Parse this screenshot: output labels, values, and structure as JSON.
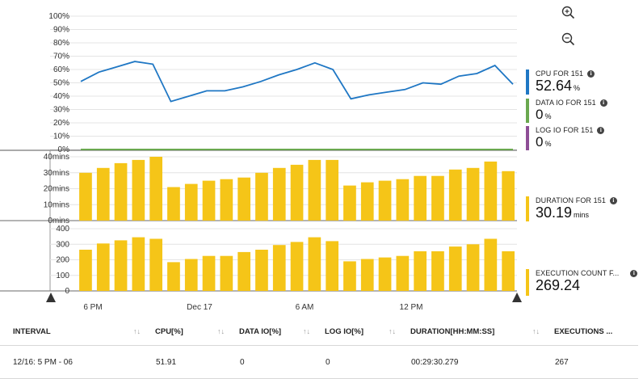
{
  "colors": {
    "cpu": "#1f77c4",
    "data_io": "#6aa84f",
    "log_io": "#8e4e96",
    "duration": "#f5c518",
    "executions": "#f5c518",
    "gridline": "#e4e4e4",
    "axis": "#666666"
  },
  "toolbar": {
    "zoom_in_icon": "zoom-in-icon",
    "zoom_out_icon": "zoom-out-icon"
  },
  "legend": {
    "cpu": {
      "label": "CPU FOR 151",
      "value": "52.64",
      "unit": "%"
    },
    "data_io": {
      "label": "DATA IO FOR 151",
      "value": "0",
      "unit": "%"
    },
    "log_io": {
      "label": "LOG IO FOR 151",
      "value": "0",
      "unit": "%"
    },
    "duration": {
      "label": "DURATION FOR 151",
      "value": "30.19",
      "unit": "mins"
    },
    "executions": {
      "label": "EXECUTION COUNT F...",
      "value": "269.24"
    }
  },
  "chart_data": [
    {
      "type": "line",
      "name": "cpu",
      "yticks": [
        "100%",
        "90%",
        "80%",
        "70%",
        "60%",
        "50%",
        "40%",
        "30%",
        "20%",
        "10%",
        "0%"
      ],
      "ylim": [
        0,
        100
      ],
      "series": [
        {
          "name": "CPU FOR 151",
          "values": [
            51,
            58,
            62,
            66,
            64,
            36,
            40,
            44,
            44,
            47,
            51,
            56,
            60,
            65,
            60,
            38,
            41,
            43,
            45,
            50,
            49,
            55,
            57,
            63,
            49
          ]
        },
        {
          "name": "DATA IO FOR 151",
          "values": [
            0,
            0,
            0,
            0,
            0,
            0,
            0,
            0,
            0,
            0,
            0,
            0,
            0,
            0,
            0,
            0,
            0,
            0,
            0,
            0,
            0,
            0,
            0,
            0,
            0
          ]
        },
        {
          "name": "LOG IO FOR 151",
          "values": [
            0,
            0,
            0,
            0,
            0,
            0,
            0,
            0,
            0,
            0,
            0,
            0,
            0,
            0,
            0,
            0,
            0,
            0,
            0,
            0,
            0,
            0,
            0,
            0,
            0
          ]
        }
      ]
    },
    {
      "type": "bar",
      "name": "duration",
      "yticks": [
        "40mins",
        "30mins",
        "20mins",
        "10mins",
        "0mins"
      ],
      "ylim": [
        0,
        40
      ],
      "values": [
        30,
        33,
        36,
        38,
        40,
        21,
        23,
        25,
        26,
        27,
        30,
        33,
        35,
        38,
        38,
        22,
        24,
        25,
        26,
        28,
        28,
        32,
        33,
        37,
        31
      ]
    },
    {
      "type": "bar",
      "name": "executions",
      "yticks": [
        "400",
        "300",
        "200",
        "100",
        "0"
      ],
      "ylim": [
        0,
        400
      ],
      "values": [
        265,
        305,
        325,
        345,
        335,
        185,
        205,
        225,
        225,
        250,
        265,
        295,
        315,
        345,
        320,
        190,
        205,
        215,
        225,
        255,
        255,
        285,
        300,
        335,
        255
      ]
    }
  ],
  "xaxis": {
    "labels": [
      "6 PM",
      "Dec 17",
      "6 AM",
      "12 PM"
    ]
  },
  "table": {
    "columns": [
      "INTERVAL",
      "CPU[%]",
      "DATA IO[%]",
      "LOG IO[%]",
      "DURATION[HH:MM:SS]",
      "EXECUTIONS ..."
    ],
    "rows": [
      [
        "12/16: 5 PM - 06",
        "51.91",
        "0",
        "0",
        "00:29:30.279",
        "267"
      ]
    ]
  }
}
